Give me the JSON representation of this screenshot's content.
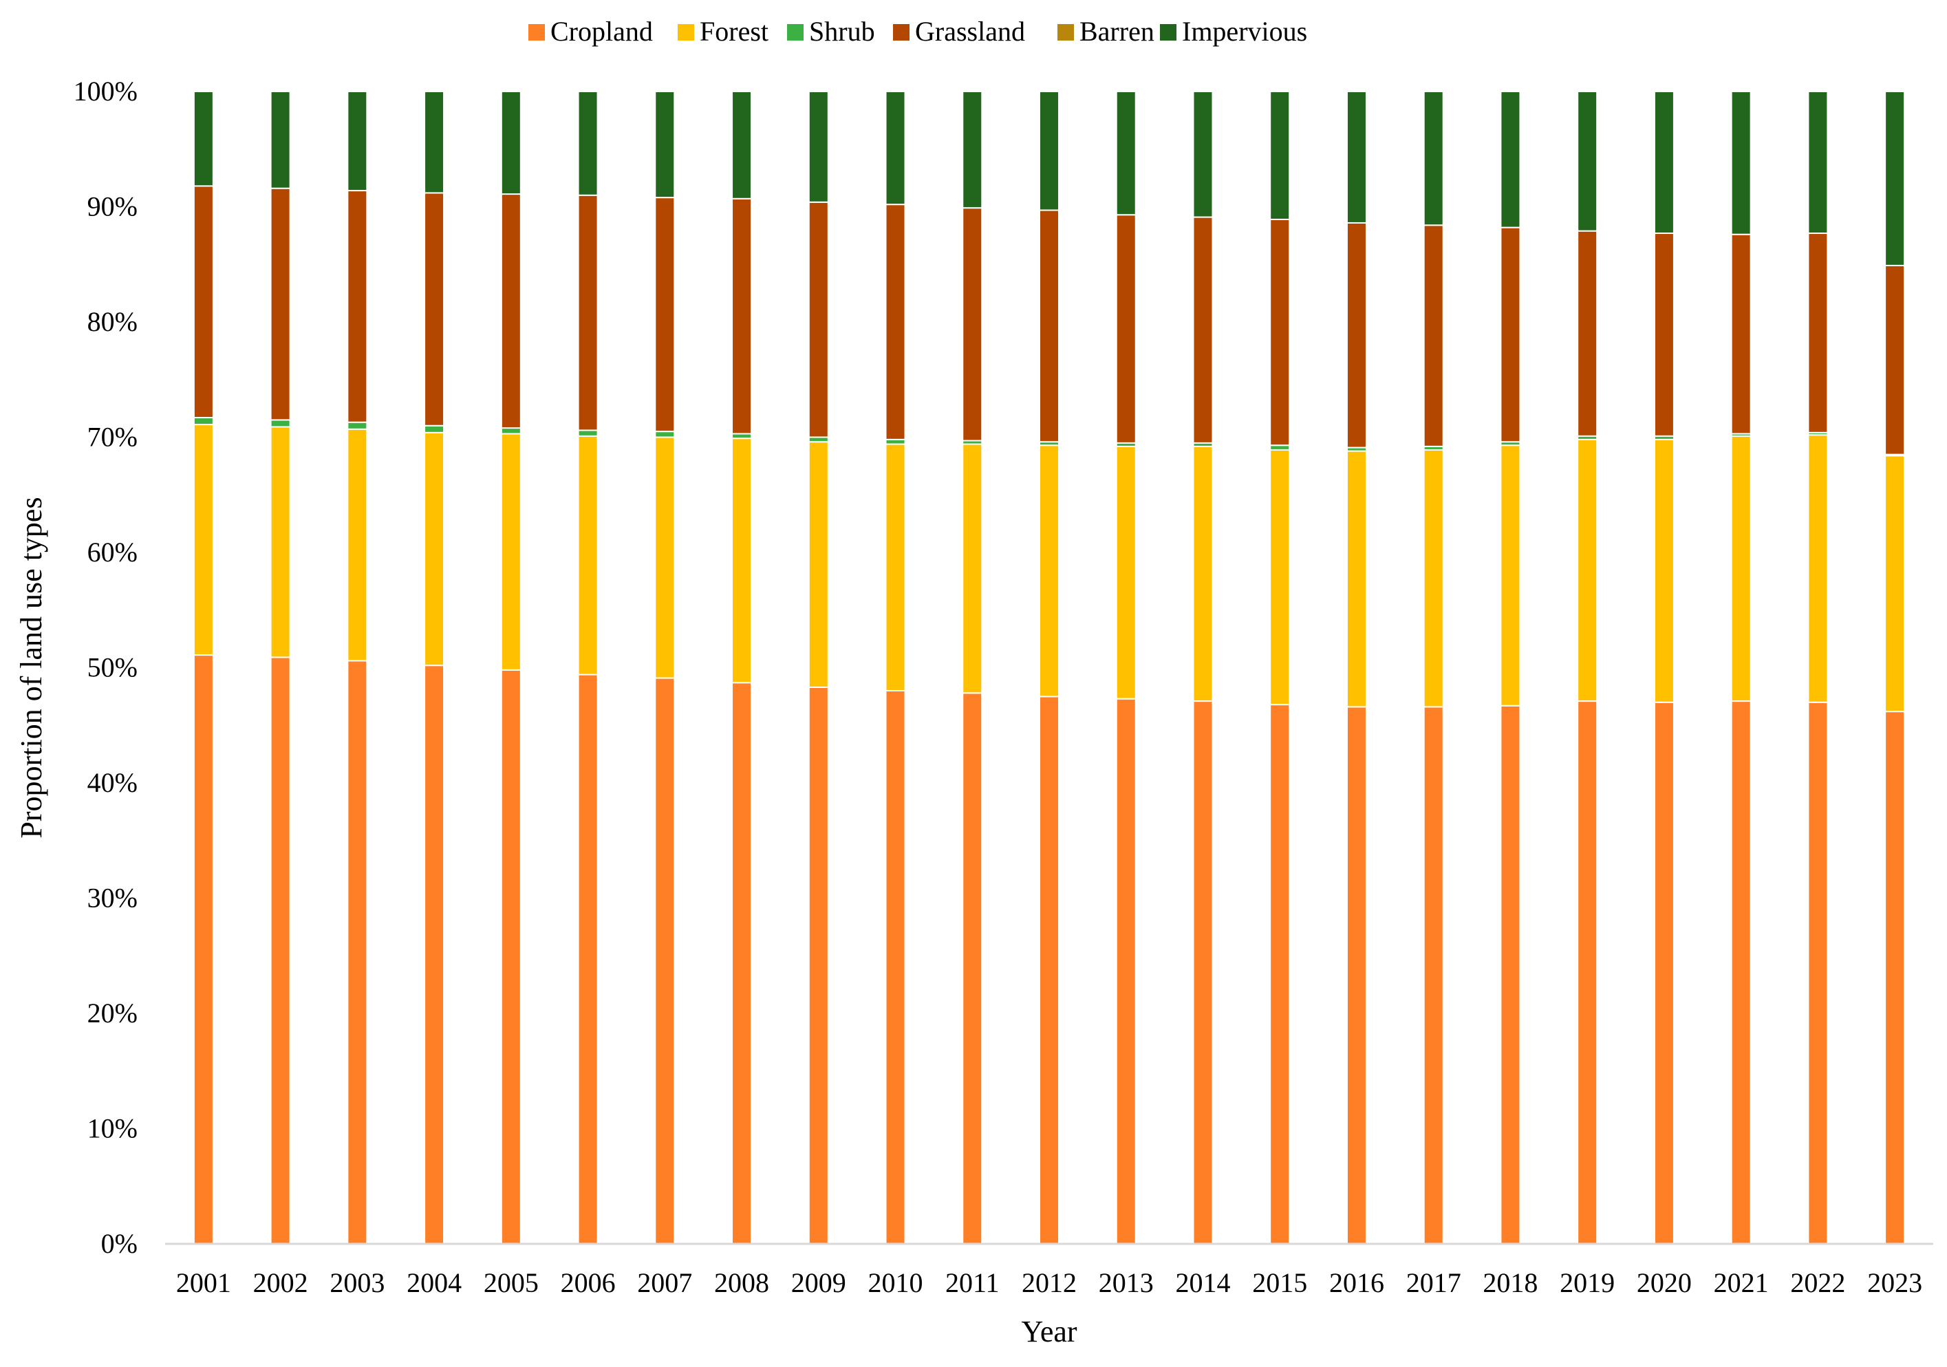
{
  "chart_data": {
    "type": "bar",
    "stacked": true,
    "title": "",
    "xlabel": "Year",
    "ylabel": "Proportion of land use types",
    "ylim": [
      0,
      100
    ],
    "y_ticks": [
      "0%",
      "10%",
      "20%",
      "30%",
      "40%",
      "50%",
      "60%",
      "70%",
      "80%",
      "90%",
      "100%"
    ],
    "grid": false,
    "legend_position": "top",
    "categories": [
      "2001",
      "2002",
      "2003",
      "2004",
      "2005",
      "2006",
      "2007",
      "2008",
      "2009",
      "2010",
      "2011",
      "2012",
      "2013",
      "2014",
      "2015",
      "2016",
      "2017",
      "2018",
      "2019",
      "2020",
      "2021",
      "2022",
      "2023"
    ],
    "series": [
      {
        "name": "Cropland",
        "color": "#FF7F27",
        "values": [
          51.1,
          50.9,
          50.6,
          50.2,
          49.8,
          49.4,
          49.1,
          48.7,
          48.3,
          48.0,
          47.8,
          47.5,
          47.3,
          47.1,
          46.8,
          46.6,
          46.6,
          46.7,
          47.1,
          47.0,
          47.1,
          47.0,
          46.2
        ]
      },
      {
        "name": "Forest",
        "color": "#FFC000",
        "values": [
          20.0,
          20.0,
          20.1,
          20.2,
          20.5,
          20.7,
          20.9,
          21.2,
          21.3,
          21.4,
          21.6,
          21.8,
          21.9,
          22.1,
          22.1,
          22.2,
          22.3,
          22.6,
          22.7,
          22.8,
          23.0,
          23.2,
          22.2
        ]
      },
      {
        "name": "Shrub",
        "color": "#3CB043",
        "values": [
          0.6,
          0.6,
          0.6,
          0.6,
          0.5,
          0.5,
          0.5,
          0.4,
          0.4,
          0.4,
          0.3,
          0.3,
          0.3,
          0.3,
          0.4,
          0.3,
          0.3,
          0.3,
          0.3,
          0.3,
          0.2,
          0.2,
          0.1
        ]
      },
      {
        "name": "Grassland",
        "color": "#B34700",
        "values": [
          20.1,
          20.1,
          20.1,
          20.2,
          20.3,
          20.4,
          20.3,
          20.4,
          20.4,
          20.4,
          20.2,
          20.1,
          19.8,
          19.6,
          19.6,
          19.5,
          19.2,
          18.6,
          17.8,
          17.6,
          17.3,
          17.3,
          16.4
        ]
      },
      {
        "name": "Barren",
        "color": "#B8860B",
        "values": [
          0.0,
          0.0,
          0.0,
          0.0,
          0.0,
          0.0,
          0.0,
          0.0,
          0.0,
          0.0,
          0.0,
          0.0,
          0.0,
          0.0,
          0.0,
          0.0,
          0.0,
          0.0,
          0.0,
          0.0,
          0.0,
          0.0,
          0.0
        ]
      },
      {
        "name": "Impervious",
        "color": "#22661E",
        "values": [
          8.2,
          8.4,
          8.6,
          8.8,
          8.9,
          9.0,
          9.2,
          9.3,
          9.6,
          9.8,
          10.1,
          10.3,
          10.7,
          10.9,
          11.1,
          11.4,
          11.6,
          11.8,
          12.1,
          12.3,
          12.4,
          12.3,
          15.1
        ]
      }
    ]
  }
}
